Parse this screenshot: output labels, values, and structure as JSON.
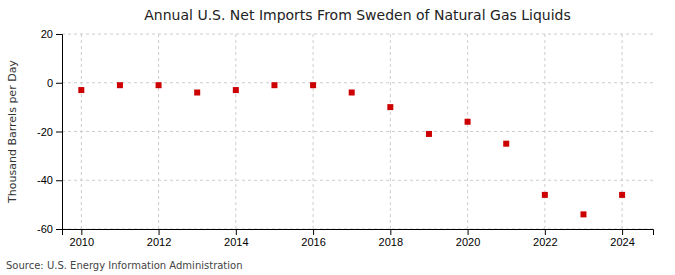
{
  "chart_data": {
    "type": "scatter",
    "title": "Annual U.S. Net Imports From Sweden of Natural Gas Liquids",
    "y_label": "Thousand Barrels per Day",
    "source": "Source: U.S. Energy Information Administration",
    "x": [
      2010,
      2011,
      2012,
      2013,
      2014,
      2015,
      2016,
      2017,
      2018,
      2019,
      2020,
      2021,
      2022,
      2023,
      2024
    ],
    "values": [
      -3,
      -1,
      -1,
      -4,
      -3,
      -1,
      -1,
      -4,
      -10,
      -21,
      -16,
      -25,
      -46,
      -54,
      -46
    ],
    "xlim": [
      2009.5,
      2024.8
    ],
    "xticks": [
      2010,
      2012,
      2014,
      2016,
      2018,
      2020,
      2022,
      2024
    ],
    "ylim": [
      -60,
      20
    ],
    "yticks": [
      -60,
      -40,
      -20,
      0,
      20
    ],
    "color": "#cc0000",
    "marker": "square",
    "grid": true
  }
}
